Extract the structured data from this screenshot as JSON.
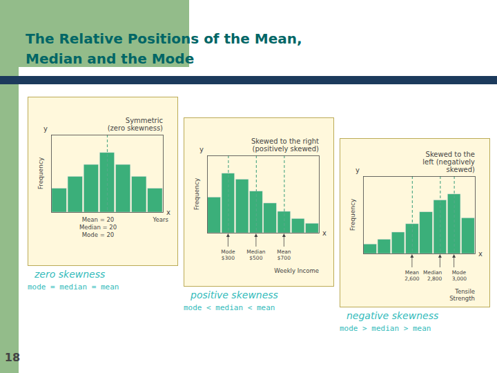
{
  "title": "The Relative Positions of the Mean,\nMedian and the Mode",
  "annotations": [
    "18"
  ],
  "chart_data": [
    {
      "type": "bar",
      "title": "Symmetric\n(zero skewness)",
      "categories": [
        null,
        null,
        null,
        null,
        null,
        null,
        null
      ],
      "values": [
        2,
        3,
        4,
        5,
        4,
        3,
        2
      ],
      "color": "#3BAF7A",
      "background": "#FFF8DC",
      "ylim": [
        0,
        6.5
      ],
      "yticks": [],
      "tick_labels": false,
      "ylabel": "Frequency",
      "xlabel": "Years",
      "axis_names": {
        "x": "x",
        "y": "y"
      },
      "note": "Mean = 20\nMedian = 20\nMode = 20",
      "vlines": {
        "x": [
          3
        ],
        "color": "#55AA88",
        "line_style": "dashed"
      },
      "caption": "zero skewness",
      "subcaption": "mode = median = mean"
    },
    {
      "type": "bar",
      "title": "Skewed to the right\n(positively skewed)",
      "categories": [
        null,
        null,
        null,
        null,
        null,
        null,
        null,
        null
      ],
      "values": [
        3,
        5,
        4.5,
        3.5,
        2.5,
        1.8,
        1.2,
        0.8
      ],
      "color": "#3BAF7A",
      "background": "#FFF8DC",
      "ylim": [
        0,
        6.5
      ],
      "yticks": [],
      "tick_labels": false,
      "ylabel": "Frequency",
      "xlabel": "Weekly Income",
      "axis_names": {
        "x": "x",
        "y": "y"
      },
      "vlines": {
        "x": [
          1,
          3,
          5
        ],
        "labels": [
          "Mode\n$300",
          "Median\n$500",
          "Mean\n$700"
        ],
        "color": "#55AA88",
        "line_style": "dashed"
      },
      "caption": "positive skewness",
      "subcaption": "mode < median < mean"
    },
    {
      "type": "bar",
      "title": "Skewed to the\nleft (negatively\nskewed)",
      "categories": [
        null,
        null,
        null,
        null,
        null,
        null,
        null,
        null
      ],
      "values": [
        0.8,
        1.2,
        1.8,
        2.5,
        3.5,
        4.5,
        5,
        3
      ],
      "color": "#3BAF7A",
      "background": "#FFF8DC",
      "ylim": [
        0,
        6.5
      ],
      "yticks": [],
      "tick_labels": false,
      "ylabel": "Frequency",
      "xlabel": "Tensile\nStrength",
      "axis_names": {
        "x": "x",
        "y": "y"
      },
      "vlines": {
        "x": [
          3,
          5,
          6
        ],
        "labels": [
          "Mean\n2,600",
          "Median\n2,800",
          "Mode\n3,000"
        ],
        "color": "#55AA88",
        "line_style": "dashed"
      },
      "caption": "negative skewness",
      "subcaption": "mode > median > mean"
    }
  ]
}
